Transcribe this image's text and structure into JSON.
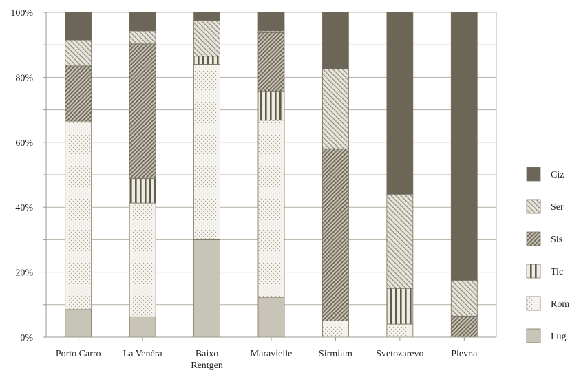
{
  "chart_data": {
    "type": "bar",
    "stacked": "percent",
    "title": "",
    "xlabel": "",
    "ylabel": "",
    "ylim": [
      0,
      100
    ],
    "yticks": [
      "0%",
      "20%",
      "40%",
      "60%",
      "80%",
      "100%"
    ],
    "grid": "horizontal",
    "legend_position": "right",
    "categories": [
      "Porto Carro",
      "La Venèra",
      "Baixo Rentgen",
      "Maravielle",
      "Sirmium",
      "Svetozarevo",
      "Plevna"
    ],
    "category_display": [
      [
        "Porto Carro"
      ],
      [
        "La Venèra"
      ],
      [
        "Baixo",
        "Rentgen"
      ],
      [
        "Maravielle"
      ],
      [
        "Sirmium"
      ],
      [
        "Svetozarevo"
      ],
      [
        "Plevna"
      ]
    ],
    "series": [
      {
        "name": "Lug",
        "values": [
          8.5,
          6.3,
          30.0,
          12.3,
          0.0,
          0.0,
          0.0
        ]
      },
      {
        "name": "Rom",
        "values": [
          58.0,
          35.0,
          54.0,
          54.5,
          5.0,
          4.0,
          0.0
        ]
      },
      {
        "name": "Tic",
        "values": [
          0.0,
          7.5,
          2.5,
          9.0,
          0.0,
          11.0,
          0.0
        ]
      },
      {
        "name": "Sis",
        "values": [
          17.0,
          41.5,
          0.0,
          18.0,
          53.0,
          0.0,
          6.5
        ]
      },
      {
        "name": "Ser",
        "values": [
          8.0,
          4.0,
          11.0,
          0.5,
          24.5,
          29.0,
          11.0
        ]
      },
      {
        "name": "Ciz",
        "values": [
          8.5,
          5.7,
          2.5,
          5.7,
          17.5,
          56.0,
          82.5
        ]
      }
    ],
    "colors": {
      "Lug": "#c8c4b8",
      "Rom": "#f6f4ee",
      "Tic": "#e8e5dc",
      "Sis": "#b9b4a6",
      "Ser": "#dcd8cc",
      "Ciz": "#6b6657",
      "axis": "#9c988c",
      "grid": "#b4b0a4"
    }
  }
}
